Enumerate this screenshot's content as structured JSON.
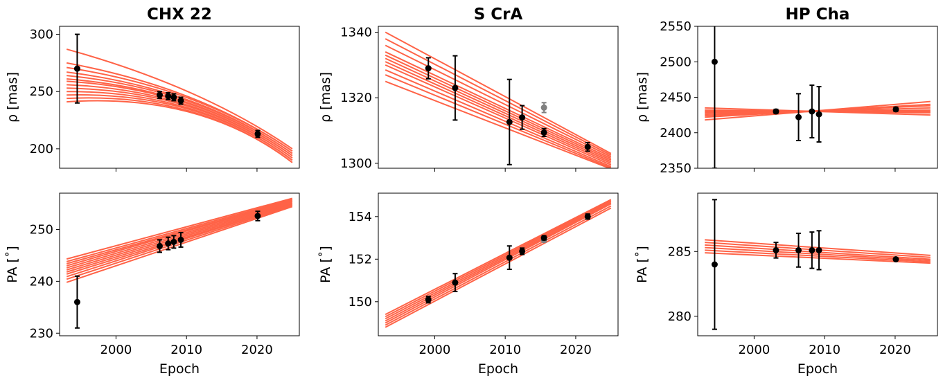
{
  "colors": {
    "model": "#ff6347",
    "data": "#000000",
    "outlier": "#808080"
  },
  "chart_data": [
    {
      "type": "scatter",
      "title": "CHX 22",
      "xlabel": "",
      "ylabel": "ρ [mas]",
      "xlim": [
        1992,
        2026
      ],
      "ylim": [
        183,
        307
      ],
      "xticks": [
        2000,
        2010,
        2020
      ],
      "xtick_labels": [
        "",
        "",
        ""
      ],
      "yticks": [
        200,
        250,
        300
      ],
      "ytick_labels": [
        "200",
        "250",
        "300"
      ],
      "model_tracks": {
        "start_x": 1993,
        "end_x": 2025,
        "start_y": [
          287,
          275,
          271,
          267,
          264,
          261,
          259,
          256,
          253,
          250,
          247,
          244,
          241
        ],
        "mid_x": 2012,
        "mid_y": 238,
        "end_y": [
          200,
          198,
          196,
          194,
          192,
          190,
          188
        ],
        "curved": true
      },
      "points": [
        {
          "x": 1994.5,
          "y": 270,
          "err": 30
        },
        {
          "x": 2006.2,
          "y": 247,
          "err": 3
        },
        {
          "x": 2007.4,
          "y": 246,
          "err": 3
        },
        {
          "x": 2008.2,
          "y": 245,
          "err": 3
        },
        {
          "x": 2009.2,
          "y": 242,
          "err": 3
        },
        {
          "x": 2020.1,
          "y": 213,
          "err": 3
        }
      ]
    },
    {
      "type": "scatter",
      "title": "S CrA",
      "xlabel": "",
      "ylabel": "ρ [mas]",
      "xlim": [
        1992,
        2026
      ],
      "ylim": [
        1298.5,
        1341.8
      ],
      "xticks": [
        2000,
        2010,
        2020
      ],
      "xtick_labels": [
        "",
        "",
        ""
      ],
      "yticks": [
        1300,
        1320,
        1340
      ],
      "ytick_labels": [
        "1300",
        "1320",
        "1340"
      ],
      "model_tracks": {
        "start_x": 1993,
        "end_x": 2025,
        "start_y": [
          1340,
          1338,
          1336,
          1334,
          1333,
          1332,
          1331,
          1330,
          1328.5,
          1327,
          1325
        ],
        "end_y": [
          1303,
          1302.5,
          1302,
          1301.5,
          1301,
          1300.5,
          1300,
          1299.5,
          1299,
          1298.6,
          1298.3
        ],
        "curved": false
      },
      "points": [
        {
          "x": 1999.1,
          "y": 1329,
          "err": 3.2
        },
        {
          "x": 2002.9,
          "y": 1323,
          "err": 9.8
        },
        {
          "x": 2010.6,
          "y": 1312.6,
          "err": 13
        },
        {
          "x": 2012.4,
          "y": 1314,
          "err": 3.6
        },
        {
          "x": 2015.5,
          "y": 1309.4,
          "err": 1.2
        },
        {
          "x": 2021.7,
          "y": 1305,
          "err": 1.3
        }
      ],
      "outliers": [
        {
          "x": 2015.5,
          "y": 1317,
          "err": 1.5
        }
      ]
    },
    {
      "type": "scatter",
      "title": "HP Cha",
      "xlabel": "",
      "ylabel": "ρ [mas]",
      "xlim": [
        1992,
        2026
      ],
      "ylim": [
        2350,
        2550
      ],
      "xticks": [
        2000,
        2010,
        2020
      ],
      "xtick_labels": [
        "",
        "",
        ""
      ],
      "yticks": [
        2350,
        2400,
        2450,
        2500,
        2550
      ],
      "ytick_labels": [
        "2350",
        "2400",
        "2450",
        "2500",
        "2550"
      ],
      "model_tracks": {
        "start_x": 1993,
        "end_x": 2025,
        "start_y": [
          2435,
          2432,
          2430,
          2428,
          2426,
          2424,
          2422,
          2418
        ],
        "end_y": [
          2425,
          2428,
          2430,
          2432,
          2435,
          2438,
          2440,
          2444
        ],
        "curved": false
      },
      "points": [
        {
          "x": 1994.4,
          "y": 2500,
          "err": 150
        },
        {
          "x": 2003.1,
          "y": 2430,
          "err": 3
        },
        {
          "x": 2006.3,
          "y": 2422,
          "err": 33
        },
        {
          "x": 2008.2,
          "y": 2430,
          "err": 37
        },
        {
          "x": 2009.2,
          "y": 2426,
          "err": 39
        },
        {
          "x": 2020.1,
          "y": 2433,
          "err": 3
        }
      ]
    },
    {
      "type": "scatter",
      "title": "",
      "xlabel": "Epoch",
      "ylabel": "PA [˚]",
      "xlim": [
        1992,
        2026
      ],
      "ylim": [
        229.5,
        257
      ],
      "xticks": [
        2000,
        2010,
        2020
      ],
      "xtick_labels": [
        "2000",
        "2010",
        "2020"
      ],
      "yticks": [
        230,
        240,
        250
      ],
      "ytick_labels": [
        "230",
        "240",
        "250"
      ],
      "model_tracks": {
        "start_x": 1993,
        "end_x": 2025,
        "start_y": [
          244.3,
          243.8,
          243.4,
          243,
          242.6,
          242.2,
          241.8,
          241.4,
          240.9,
          240.4,
          239.8
        ],
        "end_y": [
          256,
          255.8,
          255.6,
          255.4,
          255.2,
          255,
          254.8,
          254.6,
          254.4
        ],
        "curved": false
      },
      "points": [
        {
          "x": 1994.5,
          "y": 236,
          "err": 5
        },
        {
          "x": 2006.2,
          "y": 246.8,
          "err": 1.2
        },
        {
          "x": 2007.4,
          "y": 247.3,
          "err": 1.2
        },
        {
          "x": 2008.2,
          "y": 247.6,
          "err": 1.2
        },
        {
          "x": 2009.2,
          "y": 248,
          "err": 1.4
        },
        {
          "x": 2020.1,
          "y": 252.6,
          "err": 0.9
        }
      ]
    },
    {
      "type": "scatter",
      "title": "",
      "xlabel": "Epoch",
      "ylabel": "PA [˚]",
      "xlim": [
        1992,
        2026
      ],
      "ylim": [
        148.4,
        155.1
      ],
      "xticks": [
        2000,
        2010,
        2020
      ],
      "xtick_labels": [
        "2000",
        "2010",
        "2020"
      ],
      "yticks": [
        150,
        152,
        154
      ],
      "ytick_labels": [
        "150",
        "152",
        "154"
      ],
      "model_tracks": {
        "start_x": 1993,
        "end_x": 2025,
        "start_y": [
          149.4,
          149.3,
          149.2,
          149.1,
          149,
          148.9,
          148.8
        ],
        "end_y": [
          154.8,
          154.75,
          154.7,
          154.65,
          154.6,
          154.5,
          154.4
        ],
        "curved": false
      },
      "points": [
        {
          "x": 1999.1,
          "y": 150.1,
          "err": 0.15
        },
        {
          "x": 2002.9,
          "y": 150.9,
          "err": 0.42
        },
        {
          "x": 2010.6,
          "y": 152.07,
          "err": 0.55
        },
        {
          "x": 2012.4,
          "y": 152.37,
          "err": 0.15
        },
        {
          "x": 2015.5,
          "y": 153,
          "err": 0.1
        },
        {
          "x": 2021.7,
          "y": 154,
          "err": 0.12
        }
      ],
      "outliers": [
        {
          "x": 2015.5,
          "y": 152.9,
          "err": 0.1
        }
      ]
    },
    {
      "type": "scatter",
      "title": "",
      "xlabel": "Epoch",
      "ylabel": "PA [˚]",
      "xlim": [
        1992,
        2026
      ],
      "ylim": [
        278.5,
        289.5
      ],
      "xticks": [
        2000,
        2010,
        2020
      ],
      "xtick_labels": [
        "2000",
        "2010",
        "2020"
      ],
      "yticks": [
        280,
        285
      ],
      "ytick_labels": [
        "280",
        "285"
      ],
      "model_tracks": {
        "start_x": 1993,
        "end_x": 2025,
        "start_y": [
          285.9,
          285.7,
          285.5,
          285.3,
          285.1,
          284.9
        ],
        "end_y": [
          284.7,
          284.55,
          284.4,
          284.3,
          284.2,
          284.1
        ],
        "curved": false
      },
      "points": [
        {
          "x": 1994.4,
          "y": 284,
          "err": 5
        },
        {
          "x": 2003.1,
          "y": 285.1,
          "err": 0.6
        },
        {
          "x": 2006.3,
          "y": 285.1,
          "err": 1.3
        },
        {
          "x": 2008.2,
          "y": 285.1,
          "err": 1.4
        },
        {
          "x": 2009.2,
          "y": 285.1,
          "err": 1.5
        },
        {
          "x": 2020.1,
          "y": 284.4,
          "err": 0.1
        }
      ]
    }
  ]
}
